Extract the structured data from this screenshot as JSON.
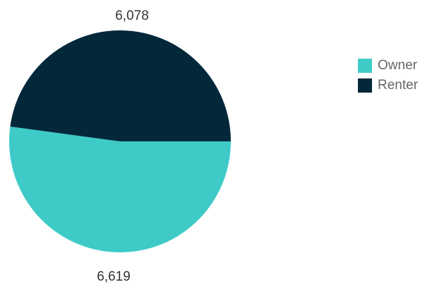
{
  "chart_data": {
    "type": "pie",
    "title": "",
    "categories": [
      "Owner",
      "Renter"
    ],
    "values": [
      6619,
      6078
    ],
    "value_labels": [
      "6,619",
      "6,078"
    ],
    "colors": [
      "#3ecbc8",
      "#03283a"
    ],
    "legend_position": "right"
  },
  "legend": {
    "items": [
      {
        "label": "Owner",
        "color": "#3ecbc8"
      },
      {
        "label": "Renter",
        "color": "#03283a"
      }
    ]
  }
}
